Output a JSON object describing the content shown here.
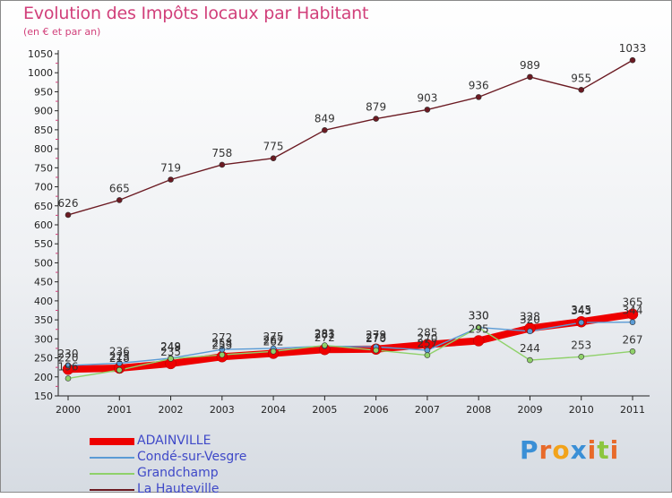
{
  "title": "Evolution des Impôts locaux par Habitant",
  "subtitle": "(en € et par an)",
  "logo": {
    "text": "Proxiti",
    "letters": [
      {
        "ch": "P",
        "color": "#3a8fd6"
      },
      {
        "ch": "r",
        "color": "#e86a2a"
      },
      {
        "ch": "o",
        "color": "#f2a31b"
      },
      {
        "ch": "x",
        "color": "#3a8fd6"
      },
      {
        "ch": "i",
        "color": "#e86a2a"
      },
      {
        "ch": "t",
        "color": "#8cc63f"
      },
      {
        "ch": "i",
        "color": "#e86a2a"
      }
    ]
  },
  "chart_data": {
    "type": "line",
    "title": "Evolution des Impôts locaux par Habitant",
    "xlabel": "",
    "ylabel": "(en € et par an)",
    "x": [
      "2000",
      "2001",
      "2002",
      "2003",
      "2004",
      "2005",
      "2006",
      "2007",
      "2008",
      "2009",
      "2010",
      "2011"
    ],
    "ylim": [
      150,
      1050
    ],
    "yticks": [
      150,
      200,
      250,
      300,
      350,
      400,
      450,
      500,
      550,
      600,
      650,
      700,
      750,
      800,
      850,
      900,
      950,
      1000,
      1050
    ],
    "grid": false,
    "legend_position": "bottom-left",
    "series": [
      {
        "name": "ADAINVILLE",
        "color": "#ee0000",
        "values": [
          220,
          223,
          235,
          253,
          262,
          272,
          273,
          285,
          295,
          328,
          345,
          365
        ]
      },
      {
        "name": "Condé-sur-Vesgre",
        "color": "#5b9bd5",
        "values": [
          230,
          236,
          249,
          272,
          275,
          281,
          279,
          270,
          330,
          320,
          343,
          344
        ]
      },
      {
        "name": "Grandchamp",
        "color": "#8fd16a",
        "values": [
          196,
          218,
          248,
          258,
          267,
          283,
          270,
          257,
          330,
          244,
          253,
          267
        ]
      },
      {
        "name": "La Hauteville",
        "color": "#6b1a22",
        "values": [
          626,
          665,
          719,
          758,
          775,
          849,
          879,
          903,
          936,
          989,
          955,
          1033
        ]
      }
    ]
  }
}
